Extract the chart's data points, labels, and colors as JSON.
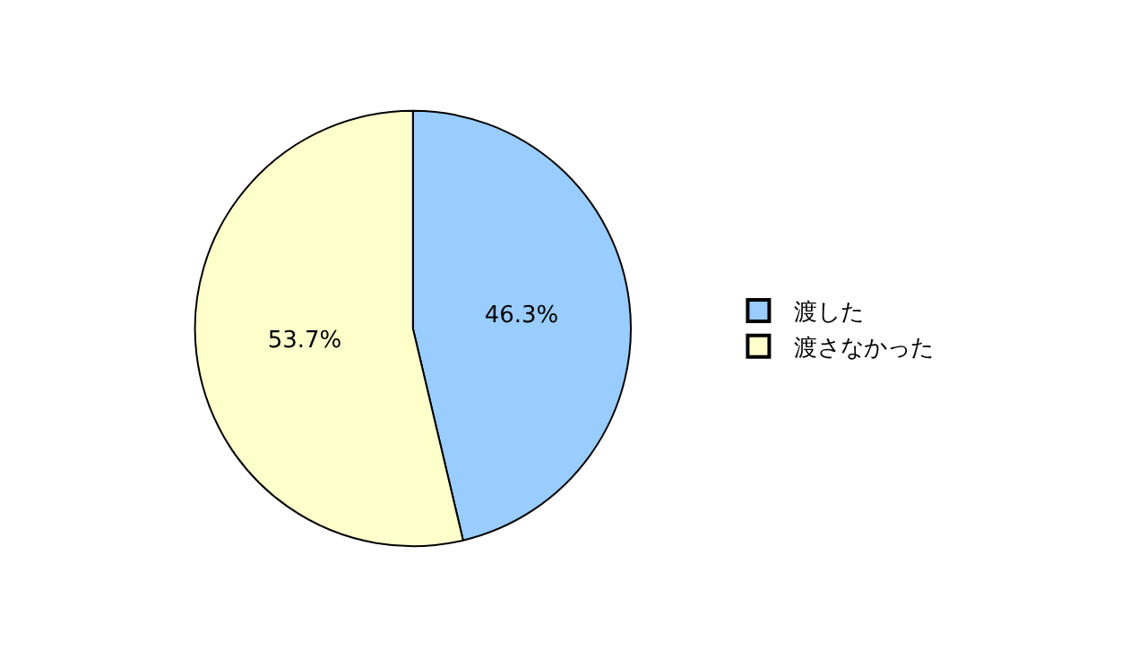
{
  "chart_data": {
    "type": "pie",
    "categories": [
      "渡した",
      "渡さなかった"
    ],
    "values": [
      46.3,
      53.7
    ],
    "colors": [
      "#99ccff",
      "#ffffcc"
    ],
    "value_labels": [
      "46.3%",
      "53.7%"
    ],
    "legend": "right"
  }
}
